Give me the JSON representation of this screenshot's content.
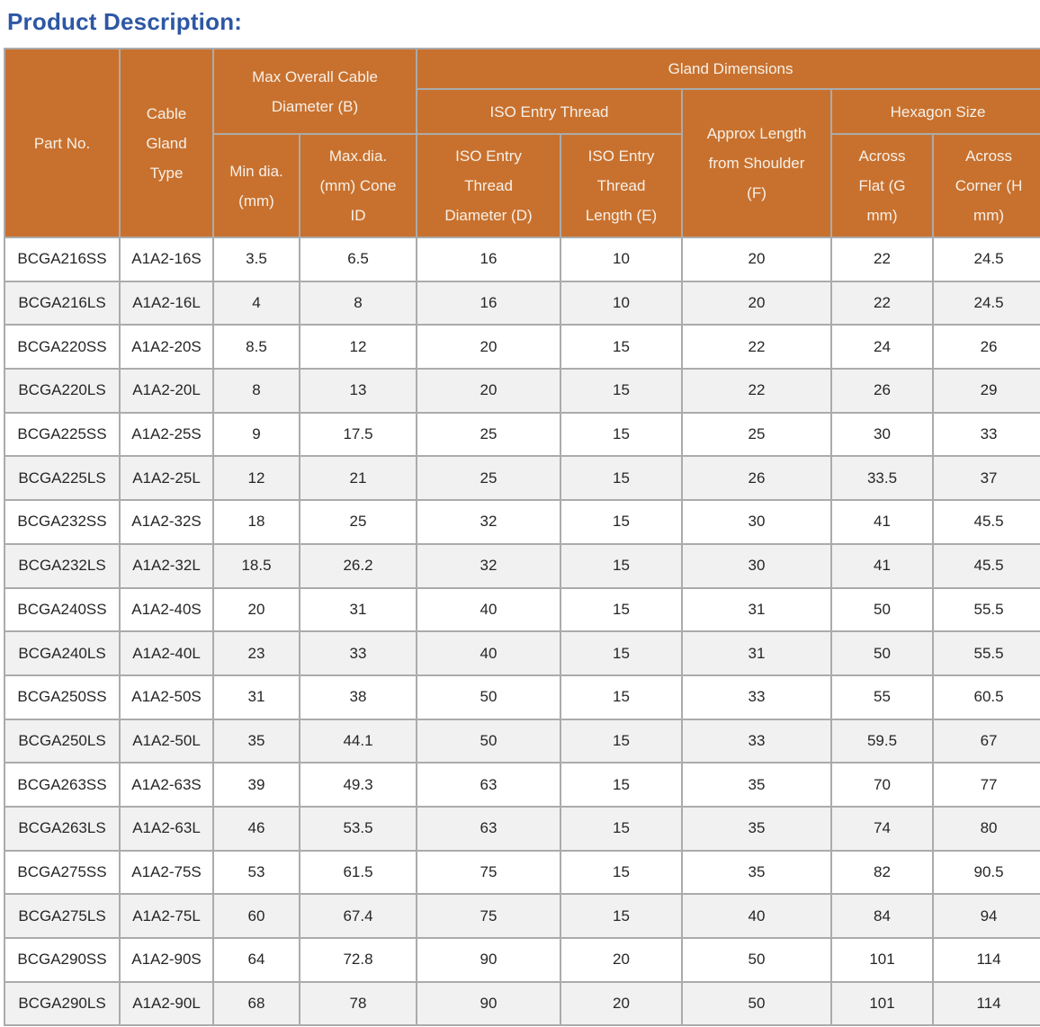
{
  "page": {
    "title": "Product Description:"
  },
  "colors": {
    "title_text": "#2D57A5",
    "header_bg": "#C8712E",
    "header_text": "#F7F0E8",
    "border": "#ABABAB",
    "row_bg": "#FFFFFF",
    "row_alt_bg": "#F1F1F1",
    "cell_text": "#262626"
  },
  "table": {
    "header": {
      "part_no": "Part No.",
      "cable_gland_type": "Cable\nGland\nType",
      "max_overall_cable_diameter": "Max Overall Cable\nDiameter (B)",
      "min_dia": "Min dia.\n(mm)",
      "max_dia": "Max.dia.\n(mm) Cone\nID",
      "gland_dimensions": "Gland Dimensions",
      "iso_entry_thread": "ISO Entry Thread",
      "iso_entry_thread_diameter": "ISO Entry\nThread\nDiameter (D)",
      "iso_entry_thread_length": "ISO Entry\nThread\nLength (E)",
      "approx_length_from_shoulder": "Approx Length\nfrom Shoulder\n(F)",
      "hexagon_size": "Hexagon Size",
      "across_flat": "Across\nFlat (G\nmm)",
      "across_corner": "Across\nCorner (H\nmm)"
    },
    "rows": [
      [
        "BCGA216SS",
        "A1A2-16S",
        "3.5",
        "6.5",
        "16",
        "10",
        "20",
        "22",
        "24.5"
      ],
      [
        "BCGA216LS",
        "A1A2-16L",
        "4",
        "8",
        "16",
        "10",
        "20",
        "22",
        "24.5"
      ],
      [
        "BCGA220SS",
        "A1A2-20S",
        "8.5",
        "12",
        "20",
        "15",
        "22",
        "24",
        "26"
      ],
      [
        "BCGA220LS",
        "A1A2-20L",
        "8",
        "13",
        "20",
        "15",
        "22",
        "26",
        "29"
      ],
      [
        "BCGA225SS",
        "A1A2-25S",
        "9",
        "17.5",
        "25",
        "15",
        "25",
        "30",
        "33"
      ],
      [
        "BCGA225LS",
        "A1A2-25L",
        "12",
        "21",
        "25",
        "15",
        "26",
        "33.5",
        "37"
      ],
      [
        "BCGA232SS",
        "A1A2-32S",
        "18",
        "25",
        "32",
        "15",
        "30",
        "41",
        "45.5"
      ],
      [
        "BCGA232LS",
        "A1A2-32L",
        "18.5",
        "26.2",
        "32",
        "15",
        "30",
        "41",
        "45.5"
      ],
      [
        "BCGA240SS",
        "A1A2-40S",
        "20",
        "31",
        "40",
        "15",
        "31",
        "50",
        "55.5"
      ],
      [
        "BCGA240LS",
        "A1A2-40L",
        "23",
        "33",
        "40",
        "15",
        "31",
        "50",
        "55.5"
      ],
      [
        "BCGA250SS",
        "A1A2-50S",
        "31",
        "38",
        "50",
        "15",
        "33",
        "55",
        "60.5"
      ],
      [
        "BCGA250LS",
        "A1A2-50L",
        "35",
        "44.1",
        "50",
        "15",
        "33",
        "59.5",
        "67"
      ],
      [
        "BCGA263SS",
        "A1A2-63S",
        "39",
        "49.3",
        "63",
        "15",
        "35",
        "70",
        "77"
      ],
      [
        "BCGA263LS",
        "A1A2-63L",
        "46",
        "53.5",
        "63",
        "15",
        "35",
        "74",
        "80"
      ],
      [
        "BCGA275SS",
        "A1A2-75S",
        "53",
        "61.5",
        "75",
        "15",
        "35",
        "82",
        "90.5"
      ],
      [
        "BCGA275LS",
        "A1A2-75L",
        "60",
        "67.4",
        "75",
        "15",
        "40",
        "84",
        "94"
      ],
      [
        "BCGA290SS",
        "A1A2-90S",
        "64",
        "72.8",
        "90",
        "20",
        "50",
        "101",
        "114"
      ],
      [
        "BCGA290LS",
        "A1A2-90L",
        "68",
        "78",
        "90",
        "20",
        "50",
        "101",
        "114"
      ]
    ]
  }
}
